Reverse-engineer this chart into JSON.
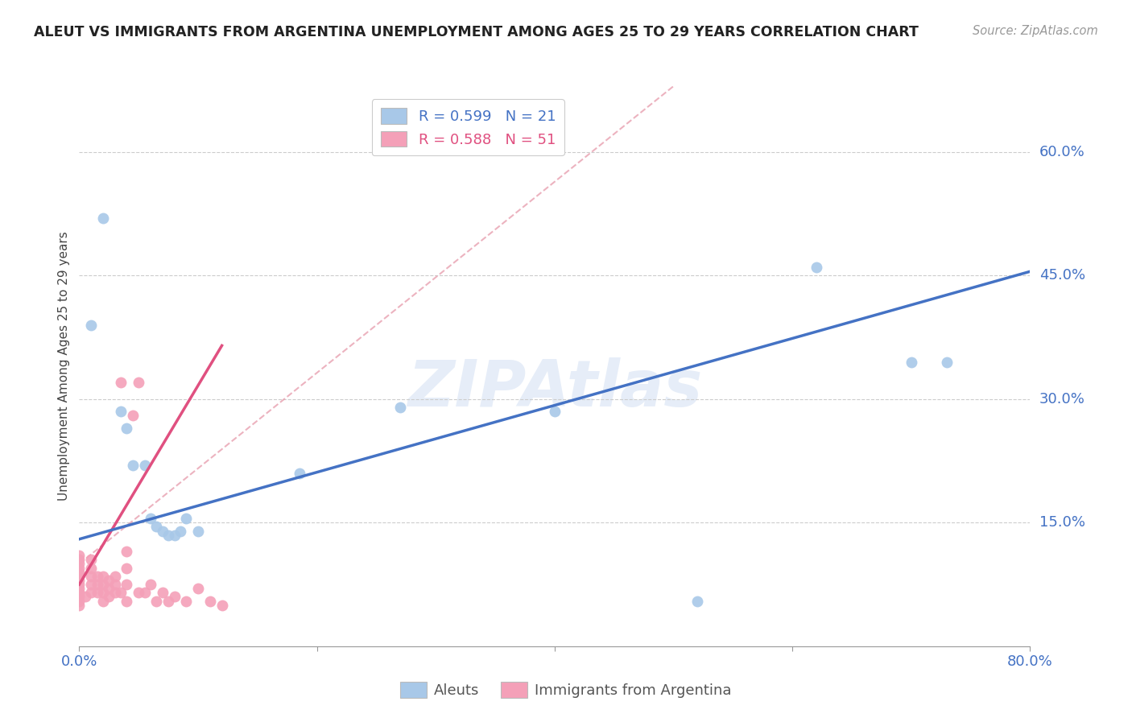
{
  "title": "ALEUT VS IMMIGRANTS FROM ARGENTINA UNEMPLOYMENT AMONG AGES 25 TO 29 YEARS CORRELATION CHART",
  "source": "Source: ZipAtlas.com",
  "ylabel": "Unemployment Among Ages 25 to 29 years",
  "watermark": "ZIPAtlas",
  "xlim": [
    0.0,
    0.8
  ],
  "ylim": [
    0.0,
    0.68
  ],
  "grid_color": "#cccccc",
  "background_color": "#ffffff",
  "aleuts_color": "#a8c8e8",
  "argentina_color": "#f4a0b8",
  "aleuts_line_color": "#4472c4",
  "argentina_line_color": "#e05080",
  "R_aleuts": 0.599,
  "N_aleuts": 21,
  "R_argentina": 0.588,
  "N_argentina": 51,
  "aleuts_points": [
    [
      0.01,
      0.39
    ],
    [
      0.02,
      0.52
    ],
    [
      0.035,
      0.285
    ],
    [
      0.04,
      0.265
    ],
    [
      0.045,
      0.22
    ],
    [
      0.055,
      0.22
    ],
    [
      0.06,
      0.155
    ],
    [
      0.065,
      0.145
    ],
    [
      0.07,
      0.14
    ],
    [
      0.075,
      0.135
    ],
    [
      0.08,
      0.135
    ],
    [
      0.085,
      0.14
    ],
    [
      0.09,
      0.155
    ],
    [
      0.1,
      0.14
    ],
    [
      0.185,
      0.21
    ],
    [
      0.27,
      0.29
    ],
    [
      0.4,
      0.285
    ],
    [
      0.52,
      0.055
    ],
    [
      0.62,
      0.46
    ],
    [
      0.7,
      0.345
    ],
    [
      0.73,
      0.345
    ]
  ],
  "argentina_points": [
    [
      0.0,
      0.055
    ],
    [
      0.0,
      0.06
    ],
    [
      0.0,
      0.065
    ],
    [
      0.0,
      0.07
    ],
    [
      0.0,
      0.075
    ],
    [
      0.0,
      0.08
    ],
    [
      0.0,
      0.085
    ],
    [
      0.0,
      0.09
    ],
    [
      0.0,
      0.095
    ],
    [
      0.0,
      0.1
    ],
    [
      0.0,
      0.105
    ],
    [
      0.0,
      0.11
    ],
    [
      0.0,
      0.05
    ],
    [
      0.005,
      0.06
    ],
    [
      0.01,
      0.065
    ],
    [
      0.01,
      0.075
    ],
    [
      0.01,
      0.085
    ],
    [
      0.01,
      0.095
    ],
    [
      0.01,
      0.105
    ],
    [
      0.015,
      0.065
    ],
    [
      0.015,
      0.075
    ],
    [
      0.015,
      0.085
    ],
    [
      0.02,
      0.055
    ],
    [
      0.02,
      0.065
    ],
    [
      0.02,
      0.075
    ],
    [
      0.02,
      0.085
    ],
    [
      0.025,
      0.06
    ],
    [
      0.025,
      0.07
    ],
    [
      0.025,
      0.08
    ],
    [
      0.03,
      0.065
    ],
    [
      0.03,
      0.075
    ],
    [
      0.03,
      0.085
    ],
    [
      0.035,
      0.065
    ],
    [
      0.035,
      0.32
    ],
    [
      0.04,
      0.055
    ],
    [
      0.04,
      0.075
    ],
    [
      0.04,
      0.095
    ],
    [
      0.04,
      0.115
    ],
    [
      0.045,
      0.28
    ],
    [
      0.05,
      0.065
    ],
    [
      0.05,
      0.32
    ],
    [
      0.055,
      0.065
    ],
    [
      0.06,
      0.075
    ],
    [
      0.065,
      0.055
    ],
    [
      0.07,
      0.065
    ],
    [
      0.075,
      0.055
    ],
    [
      0.08,
      0.06
    ],
    [
      0.09,
      0.055
    ],
    [
      0.1,
      0.07
    ],
    [
      0.11,
      0.055
    ],
    [
      0.12,
      0.05
    ]
  ],
  "aleuts_trend_x": [
    0.0,
    0.8
  ],
  "aleuts_trend_y": [
    0.13,
    0.455
  ],
  "argentina_trend_x": [
    0.0,
    0.12
  ],
  "argentina_trend_y": [
    0.075,
    0.365
  ],
  "diag_line_x": [
    0.0,
    0.5
  ],
  "diag_line_y": [
    0.1,
    0.68
  ],
  "ytick_positions": [
    0.15,
    0.3,
    0.45,
    0.6
  ],
  "ytick_labels": [
    "15.0%",
    "30.0%",
    "45.0%",
    "60.0%"
  ]
}
